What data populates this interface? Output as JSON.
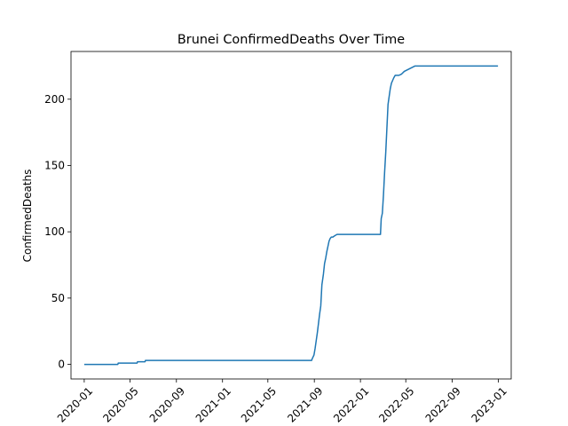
{
  "chart_data": {
    "type": "line",
    "title": "Brunei  ConfirmedDeaths Over Time",
    "xlabel": "",
    "ylabel": "ConfirmedDeaths",
    "x_ticks": [
      "2020-01",
      "2020-05",
      "2020-09",
      "2021-01",
      "2021-05",
      "2021-09",
      "2022-01",
      "2022-05",
      "2022-09",
      "2023-01"
    ],
    "y_ticks": [
      "0",
      "50",
      "100",
      "150",
      "200"
    ],
    "xlim": [
      "2019-11-27",
      "2023-02-04"
    ],
    "ylim": [
      -11,
      236
    ],
    "grid": false,
    "line_color": "#1f77b4",
    "series": [
      {
        "x": [
          "2020-01-01",
          "2020-03-30",
          "2020-03-31",
          "2020-05-20",
          "2020-05-21",
          "2020-06-10",
          "2020-06-11",
          "2021-08-25",
          "2021-08-26",
          "2021-08-31",
          "2021-09-03",
          "2021-09-06",
          "2021-09-09",
          "2021-09-12",
          "2021-09-15",
          "2021-09-18",
          "2021-09-21",
          "2021-09-23",
          "2021-09-25",
          "2021-09-28",
          "2021-10-01",
          "2021-10-04",
          "2021-10-07",
          "2021-10-10",
          "2021-10-13",
          "2021-10-16",
          "2021-10-20",
          "2021-10-25",
          "2021-10-31",
          "2021-11-10",
          "2021-11-20",
          "2022-02-23",
          "2022-02-25",
          "2022-02-28",
          "2022-03-03",
          "2022-03-06",
          "2022-03-09",
          "2022-03-12",
          "2022-03-15",
          "2022-03-18",
          "2022-03-21",
          "2022-03-24",
          "2022-03-27",
          "2022-03-30",
          "2022-04-03",
          "2022-04-08",
          "2022-04-13",
          "2022-04-20",
          "2022-04-27",
          "2022-05-04",
          "2022-05-11",
          "2022-05-18",
          "2022-05-25",
          "2022-06-01",
          "2022-06-08",
          "2022-12-31"
        ],
        "y": [
          0,
          0,
          1,
          1,
          2,
          2,
          3,
          3,
          4,
          7,
          12,
          18,
          24,
          31,
          38,
          44,
          60,
          64,
          68,
          76,
          80,
          85,
          89,
          93,
          95,
          96,
          96,
          97,
          98,
          98,
          98,
          98,
          110,
          114,
          128,
          145,
          160,
          178,
          196,
          202,
          208,
          212,
          214,
          216,
          218,
          218,
          218,
          219,
          221,
          222,
          223,
          224,
          225,
          225,
          225,
          225
        ]
      }
    ]
  }
}
